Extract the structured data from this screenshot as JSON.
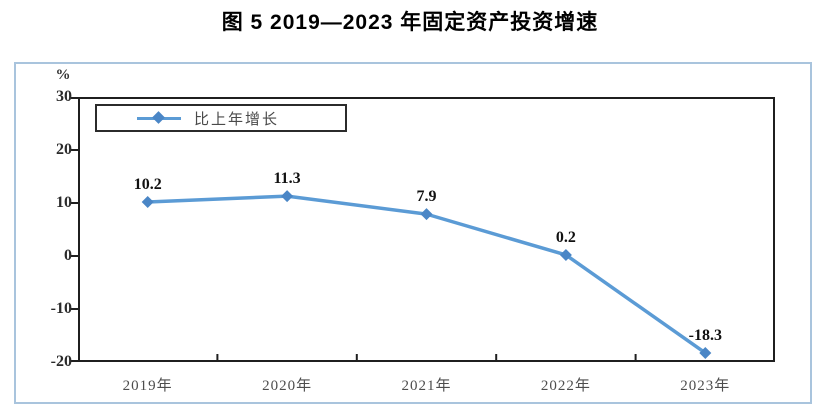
{
  "title": "图 5  2019—2023 年固定资产投资增速",
  "chart_data": {
    "type": "line",
    "title": "图 5  2019—2023 年固定资产投资增速",
    "categories": [
      "2019年",
      "2020年",
      "2021年",
      "2022年",
      "2023年"
    ],
    "series": [
      {
        "name": "比上年增长",
        "values": [
          10.2,
          11.3,
          7.9,
          0.2,
          -18.3
        ]
      }
    ],
    "ylabel": "%",
    "ylim": [
      -20,
      30
    ],
    "yticks": [
      30,
      20,
      10,
      0,
      -10,
      -20
    ],
    "grid": false,
    "legend_position": "top-left",
    "line_color": "#5b9bd5",
    "marker_color": "#4a86c6",
    "frame_color": "#1f1f1f",
    "outer_border_color": "#a9c4dd"
  },
  "legend": {
    "label": "比上年增长"
  }
}
